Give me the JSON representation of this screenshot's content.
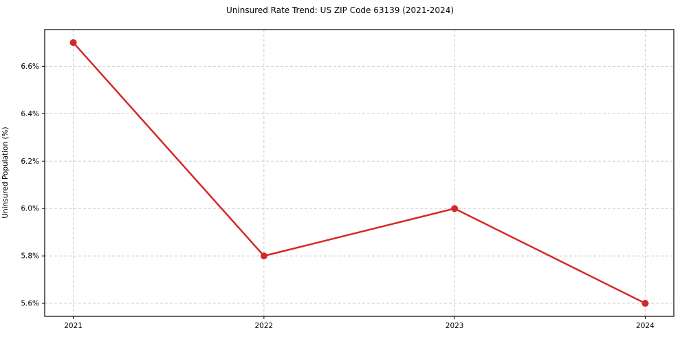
{
  "chart_data": {
    "type": "line",
    "title": "Uninsured Rate Trend: US ZIP Code 63139 (2021-2024)",
    "xlabel": "",
    "ylabel": "Uninsured Population (%)",
    "x": [
      2021,
      2022,
      2023,
      2024
    ],
    "values": [
      6.7,
      5.8,
      6.0,
      5.6
    ],
    "xlim": [
      2020.85,
      2024.15
    ],
    "ylim": [
      5.545,
      6.755
    ],
    "xticks": [
      2021,
      2022,
      2023,
      2024
    ],
    "xtick_labels": [
      "2021",
      "2022",
      "2023",
      "2024"
    ],
    "yticks": [
      5.6,
      5.8,
      6.0,
      6.2,
      6.4,
      6.6
    ],
    "ytick_labels": [
      "5.6%",
      "5.8%",
      "6.0%",
      "6.2%",
      "6.4%",
      "6.6%"
    ],
    "legend": [],
    "grid": "dashed",
    "colors": {
      "line": "#d62728",
      "marker": "#d62728",
      "grid": "#cccccc",
      "axis_frame": "#000000",
      "background": "#ffffff"
    }
  }
}
